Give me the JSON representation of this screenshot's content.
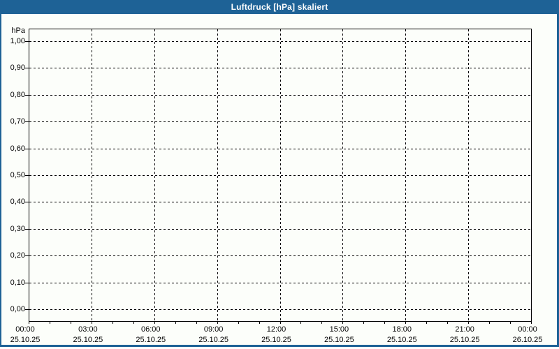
{
  "title": "Luftdruck [hPa] skaliert",
  "colors": {
    "frame_blue": "#1e6296",
    "background": "#fcfefa",
    "grid": "#000000",
    "title_text": "#ffffff"
  },
  "chart_data": {
    "type": "line",
    "title": "Luftdruck [hPa] skaliert",
    "xlabel": "",
    "ylabel": "hPa",
    "ylim": [
      0.0,
      1.0
    ],
    "y_tick_step": 0.1,
    "y_ticks": [
      "1,00",
      "0,90",
      "0,80",
      "0,70",
      "0,60",
      "0,50",
      "0,40",
      "0,30",
      "0,20",
      "0,10",
      "0,00"
    ],
    "x_range": [
      "25.10.25 00:00",
      "26.10.25 00:00"
    ],
    "x_major_tick_hours": 3,
    "x_minor_tick_hours": 1,
    "x_ticks": [
      {
        "time": "00:00",
        "date": "25.10.25"
      },
      {
        "time": "03:00",
        "date": "25.10.25"
      },
      {
        "time": "06:00",
        "date": "25.10.25"
      },
      {
        "time": "09:00",
        "date": "25.10.25"
      },
      {
        "time": "12:00",
        "date": "25.10.25"
      },
      {
        "time": "15:00",
        "date": "25.10.25"
      },
      {
        "time": "18:00",
        "date": "25.10.25"
      },
      {
        "time": "21:00",
        "date": "25.10.25"
      },
      {
        "time": "00:00",
        "date": "26.10.25"
      }
    ],
    "grid": "dashed",
    "legend": "none",
    "series": []
  }
}
